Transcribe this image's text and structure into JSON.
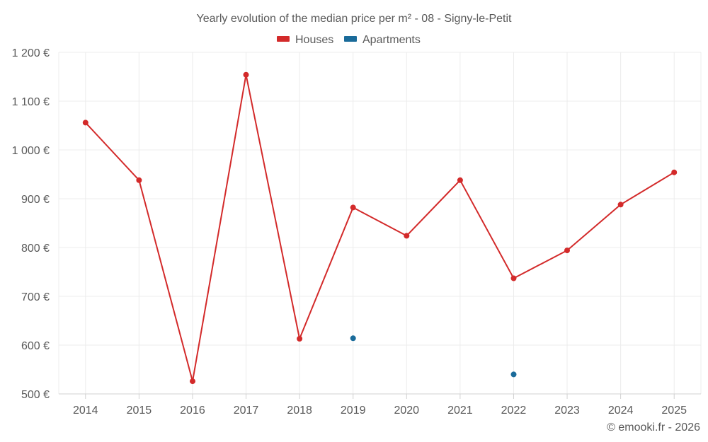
{
  "chart_data": {
    "type": "line",
    "title": "Yearly evolution of the median price per m² - 08 - Signy-le-Petit",
    "categories": [
      "2014",
      "2015",
      "2016",
      "2017",
      "2018",
      "2019",
      "2020",
      "2021",
      "2022",
      "2023",
      "2024",
      "2025"
    ],
    "ylim": [
      500,
      1200
    ],
    "yticks": [
      500,
      600,
      700,
      800,
      900,
      1000,
      1100,
      1200
    ],
    "ytick_labels": [
      "500 €",
      "600 €",
      "700 €",
      "800 €",
      "900 €",
      "1 000 €",
      "1 100 €",
      "1 200 €"
    ],
    "series": [
      {
        "name": "Houses",
        "color": "#d32a2a",
        "values": [
          1056,
          938,
          526,
          1154,
          613,
          882,
          824,
          938,
          737,
          794,
          888,
          954
        ]
      },
      {
        "name": "Apartments",
        "color": "#1a6b9a",
        "values": [
          null,
          null,
          null,
          null,
          null,
          614,
          null,
          null,
          540,
          null,
          null,
          null
        ]
      }
    ],
    "legend_position": "top-center",
    "grid": true
  },
  "credit": "© emooki.fr - 2026"
}
